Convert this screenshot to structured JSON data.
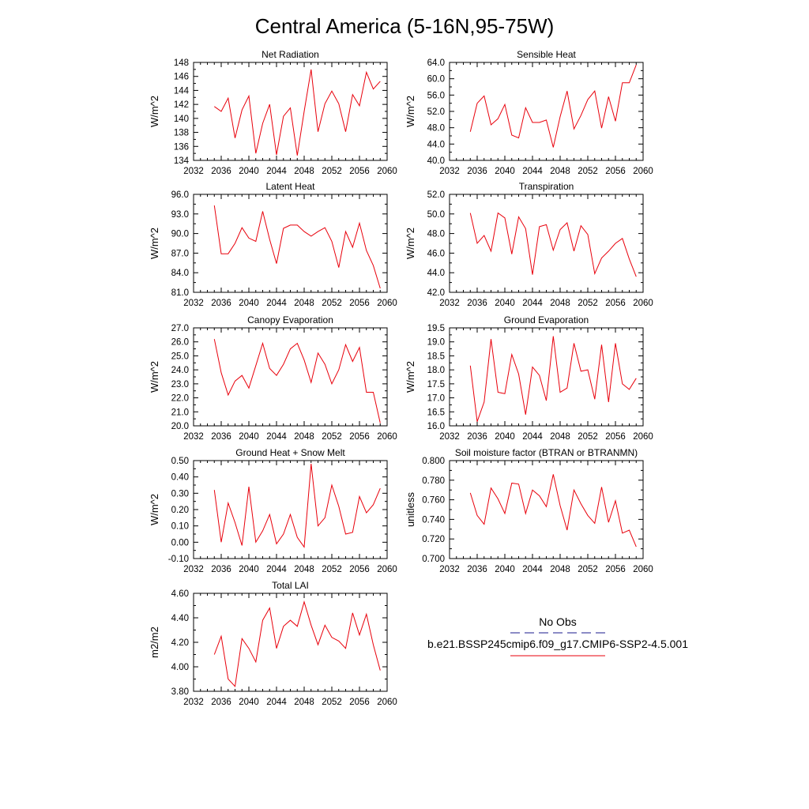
{
  "figure": {
    "title": "Central America (5-16N,95-75W)"
  },
  "legend": {
    "obs_label": "No Obs",
    "case_label": "b.e21.BSSP245cmip6.f09_g17.CMIP6-SSP2-4.5.001",
    "obs_color": "#1a1a8c",
    "case_color": "#e8000b"
  },
  "chart_data": [
    {
      "type": "line",
      "title": "Net Radiation",
      "ylabel": "W/m^2",
      "xlim": [
        2032,
        2060
      ],
      "ylim": [
        134,
        148
      ],
      "xticks": [
        "2032",
        "2036",
        "2040",
        "2044",
        "2048",
        "2052",
        "2056",
        "2060"
      ],
      "yticks": [
        "134",
        "136",
        "138",
        "140",
        "142",
        "144",
        "146",
        "148"
      ],
      "series": [
        {
          "color": "#e8000b",
          "x": [
            2035,
            2036,
            2037,
            2038,
            2039,
            2040,
            2041,
            2042,
            2043,
            2044,
            2045,
            2046,
            2047,
            2048,
            2049,
            2050,
            2051,
            2052,
            2053,
            2054,
            2055,
            2056,
            2057,
            2058,
            2059
          ],
          "y": [
            141.7,
            141.0,
            142.9,
            137.2,
            141.2,
            143.2,
            135.0,
            139.3,
            142.0,
            134.8,
            140.3,
            141.5,
            134.7,
            141.0,
            147.0,
            138.1,
            142.1,
            143.9,
            142.1,
            138.1,
            143.4,
            141.8,
            146.6,
            144.2,
            145.3
          ]
        }
      ]
    },
    {
      "type": "line",
      "title": "Sensible Heat",
      "ylabel": "W/m^2",
      "xlim": [
        2032,
        2060
      ],
      "ylim": [
        40,
        64
      ],
      "xticks": [
        "2032",
        "2036",
        "2040",
        "2044",
        "2048",
        "2052",
        "2056",
        "2060"
      ],
      "yticks": [
        "40.0",
        "44.0",
        "48.0",
        "52.0",
        "56.0",
        "60.0",
        "64.0"
      ],
      "series": [
        {
          "color": "#e8000b",
          "x": [
            2035,
            2036,
            2037,
            2038,
            2039,
            2040,
            2041,
            2042,
            2043,
            2044,
            2045,
            2046,
            2047,
            2048,
            2049,
            2050,
            2051,
            2052,
            2053,
            2054,
            2055,
            2056,
            2057,
            2058,
            2059
          ],
          "y": [
            47.0,
            54.0,
            55.8,
            48.7,
            50.2,
            53.7,
            46.2,
            45.5,
            52.9,
            49.3,
            49.3,
            49.9,
            43.2,
            50.7,
            57.0,
            47.7,
            51.0,
            54.9,
            57.0,
            47.9,
            55.6,
            49.6,
            59.0,
            59.0,
            63.4
          ]
        }
      ]
    },
    {
      "type": "line",
      "title": "Latent Heat",
      "ylabel": "W/m^2",
      "xlim": [
        2032,
        2060
      ],
      "ylim": [
        81,
        96
      ],
      "xticks": [
        "2032",
        "2036",
        "2040",
        "2044",
        "2048",
        "2052",
        "2056",
        "2060"
      ],
      "yticks": [
        "81.0",
        "84.0",
        "87.0",
        "90.0",
        "93.0",
        "96.0"
      ],
      "series": [
        {
          "color": "#e8000b",
          "x": [
            2035,
            2036,
            2037,
            2038,
            2039,
            2040,
            2041,
            2042,
            2043,
            2044,
            2045,
            2046,
            2047,
            2048,
            2049,
            2050,
            2051,
            2052,
            2053,
            2054,
            2055,
            2056,
            2057,
            2058,
            2059
          ],
          "y": [
            94.3,
            86.9,
            86.9,
            88.5,
            90.9,
            89.3,
            88.8,
            93.4,
            89.1,
            85.4,
            90.8,
            91.3,
            91.3,
            90.3,
            89.6,
            90.3,
            90.9,
            88.8,
            84.8,
            90.3,
            87.9,
            91.6,
            87.4,
            85.1,
            81.6
          ]
        }
      ]
    },
    {
      "type": "line",
      "title": "Transpiration",
      "ylabel": "W/m^2",
      "xlim": [
        2032,
        2060
      ],
      "ylim": [
        42,
        52
      ],
      "xticks": [
        "2032",
        "2036",
        "2040",
        "2044",
        "2048",
        "2052",
        "2056",
        "2060"
      ],
      "yticks": [
        "42.0",
        "44.0",
        "46.0",
        "48.0",
        "50.0",
        "52.0"
      ],
      "series": [
        {
          "color": "#e8000b",
          "x": [
            2035,
            2036,
            2037,
            2038,
            2039,
            2040,
            2041,
            2042,
            2043,
            2044,
            2045,
            2046,
            2047,
            2048,
            2049,
            2050,
            2051,
            2052,
            2053,
            2054,
            2055,
            2056,
            2057,
            2058,
            2059
          ],
          "y": [
            50.1,
            47.0,
            47.8,
            46.2,
            50.1,
            49.6,
            45.9,
            49.7,
            48.5,
            43.8,
            48.7,
            48.9,
            46.3,
            48.4,
            49.1,
            46.2,
            48.8,
            47.9,
            43.9,
            45.5,
            46.2,
            47.0,
            47.5,
            45.4,
            43.6
          ]
        }
      ]
    },
    {
      "type": "line",
      "title": "Canopy Evaporation",
      "ylabel": "W/m^2",
      "xlim": [
        2032,
        2060
      ],
      "ylim": [
        20,
        27
      ],
      "xticks": [
        "2032",
        "2036",
        "2040",
        "2044",
        "2048",
        "2052",
        "2056",
        "2060"
      ],
      "yticks": [
        "20.0",
        "21.0",
        "22.0",
        "23.0",
        "24.0",
        "25.0",
        "26.0",
        "27.0"
      ],
      "series": [
        {
          "color": "#e8000b",
          "x": [
            2035,
            2036,
            2037,
            2038,
            2039,
            2040,
            2041,
            2042,
            2043,
            2044,
            2045,
            2046,
            2047,
            2048,
            2049,
            2050,
            2051,
            2052,
            2053,
            2054,
            2055,
            2056,
            2057,
            2058,
            2059
          ],
          "y": [
            26.2,
            23.8,
            22.2,
            23.2,
            23.6,
            22.7,
            24.3,
            25.9,
            24.1,
            23.6,
            24.4,
            25.5,
            25.9,
            24.7,
            23.1,
            25.2,
            24.4,
            23.0,
            24.0,
            25.8,
            24.6,
            25.6,
            22.4,
            22.4,
            20.2
          ]
        }
      ]
    },
    {
      "type": "line",
      "title": "Ground Evaporation",
      "ylabel": "W/m^2",
      "xlim": [
        2032,
        2060
      ],
      "ylim": [
        16,
        19.5
      ],
      "xticks": [
        "2032",
        "2036",
        "2040",
        "2044",
        "2048",
        "2052",
        "2056",
        "2060"
      ],
      "yticks": [
        "16.0",
        "16.5",
        "17.0",
        "17.5",
        "18.0",
        "18.5",
        "19.0",
        "19.5"
      ],
      "series": [
        {
          "color": "#e8000b",
          "x": [
            2035,
            2036,
            2037,
            2038,
            2039,
            2040,
            2041,
            2042,
            2043,
            2044,
            2045,
            2046,
            2047,
            2048,
            2049,
            2050,
            2051,
            2052,
            2053,
            2054,
            2055,
            2056,
            2057,
            2058,
            2059
          ],
          "y": [
            18.15,
            16.15,
            16.85,
            19.1,
            17.2,
            17.15,
            18.55,
            17.85,
            16.4,
            18.1,
            17.8,
            16.9,
            19.2,
            17.2,
            17.35,
            18.95,
            17.95,
            18.0,
            16.95,
            18.9,
            16.85,
            18.95,
            17.5,
            17.3,
            17.7
          ]
        }
      ]
    },
    {
      "type": "line",
      "title": "Ground Heat + Snow Melt",
      "ylabel": "W/m^2",
      "xlim": [
        2032,
        2060
      ],
      "ylim": [
        -0.1,
        0.5
      ],
      "xticks": [
        "2032",
        "2036",
        "2040",
        "2044",
        "2048",
        "2052",
        "2056",
        "2060"
      ],
      "yticks": [
        "-0.10",
        "0.00",
        "0.10",
        "0.20",
        "0.30",
        "0.40",
        "0.50"
      ],
      "series": [
        {
          "color": "#e8000b",
          "x": [
            2035,
            2036,
            2037,
            2038,
            2039,
            2040,
            2041,
            2042,
            2043,
            2044,
            2045,
            2046,
            2047,
            2048,
            2049,
            2050,
            2051,
            2052,
            2053,
            2054,
            2055,
            2056,
            2057,
            2058,
            2059
          ],
          "y": [
            0.32,
            0.0,
            0.24,
            0.12,
            -0.02,
            0.34,
            0.0,
            0.07,
            0.17,
            -0.01,
            0.05,
            0.17,
            0.03,
            -0.03,
            0.48,
            0.1,
            0.15,
            0.35,
            0.22,
            0.05,
            0.06,
            0.28,
            0.18,
            0.23,
            0.33
          ]
        }
      ]
    },
    {
      "type": "line",
      "title": "Soil moisture factor (BTRAN or BTRANMN)",
      "ylabel": "unitless",
      "xlim": [
        2032,
        2060
      ],
      "ylim": [
        0.7,
        0.8
      ],
      "xticks": [
        "2032",
        "2036",
        "2040",
        "2044",
        "2048",
        "2052",
        "2056",
        "2060"
      ],
      "yticks": [
        "0.700",
        "0.720",
        "0.740",
        "0.760",
        "0.780",
        "0.800"
      ],
      "series": [
        {
          "color": "#e8000b",
          "x": [
            2035,
            2036,
            2037,
            2038,
            2039,
            2040,
            2041,
            2042,
            2043,
            2044,
            2045,
            2046,
            2047,
            2048,
            2049,
            2050,
            2051,
            2052,
            2053,
            2054,
            2055,
            2056,
            2057,
            2058,
            2059
          ],
          "y": [
            0.767,
            0.744,
            0.735,
            0.772,
            0.761,
            0.746,
            0.777,
            0.776,
            0.746,
            0.77,
            0.764,
            0.753,
            0.786,
            0.754,
            0.729,
            0.77,
            0.756,
            0.744,
            0.736,
            0.773,
            0.737,
            0.759,
            0.726,
            0.729,
            0.712
          ]
        }
      ]
    },
    {
      "type": "line",
      "title": "Total LAI",
      "ylabel": "m2/m2",
      "xlim": [
        2032,
        2060
      ],
      "ylim": [
        3.8,
        4.6
      ],
      "xticks": [
        "2032",
        "2036",
        "2040",
        "2044",
        "2048",
        "2052",
        "2056",
        "2060"
      ],
      "yticks": [
        "3.80",
        "4.00",
        "4.20",
        "4.40",
        "4.60"
      ],
      "series": [
        {
          "color": "#e8000b",
          "x": [
            2035,
            2036,
            2037,
            2038,
            2039,
            2040,
            2041,
            2042,
            2043,
            2044,
            2045,
            2046,
            2047,
            2048,
            2049,
            2050,
            2051,
            2052,
            2053,
            2054,
            2055,
            2056,
            2057,
            2058,
            2059
          ],
          "y": [
            4.1,
            4.25,
            3.9,
            3.84,
            4.23,
            4.15,
            4.04,
            4.38,
            4.48,
            4.15,
            4.33,
            4.38,
            4.33,
            4.53,
            4.34,
            4.18,
            4.34,
            4.24,
            4.21,
            4.15,
            4.44,
            4.26,
            4.43,
            4.18,
            3.97
          ]
        }
      ]
    }
  ]
}
